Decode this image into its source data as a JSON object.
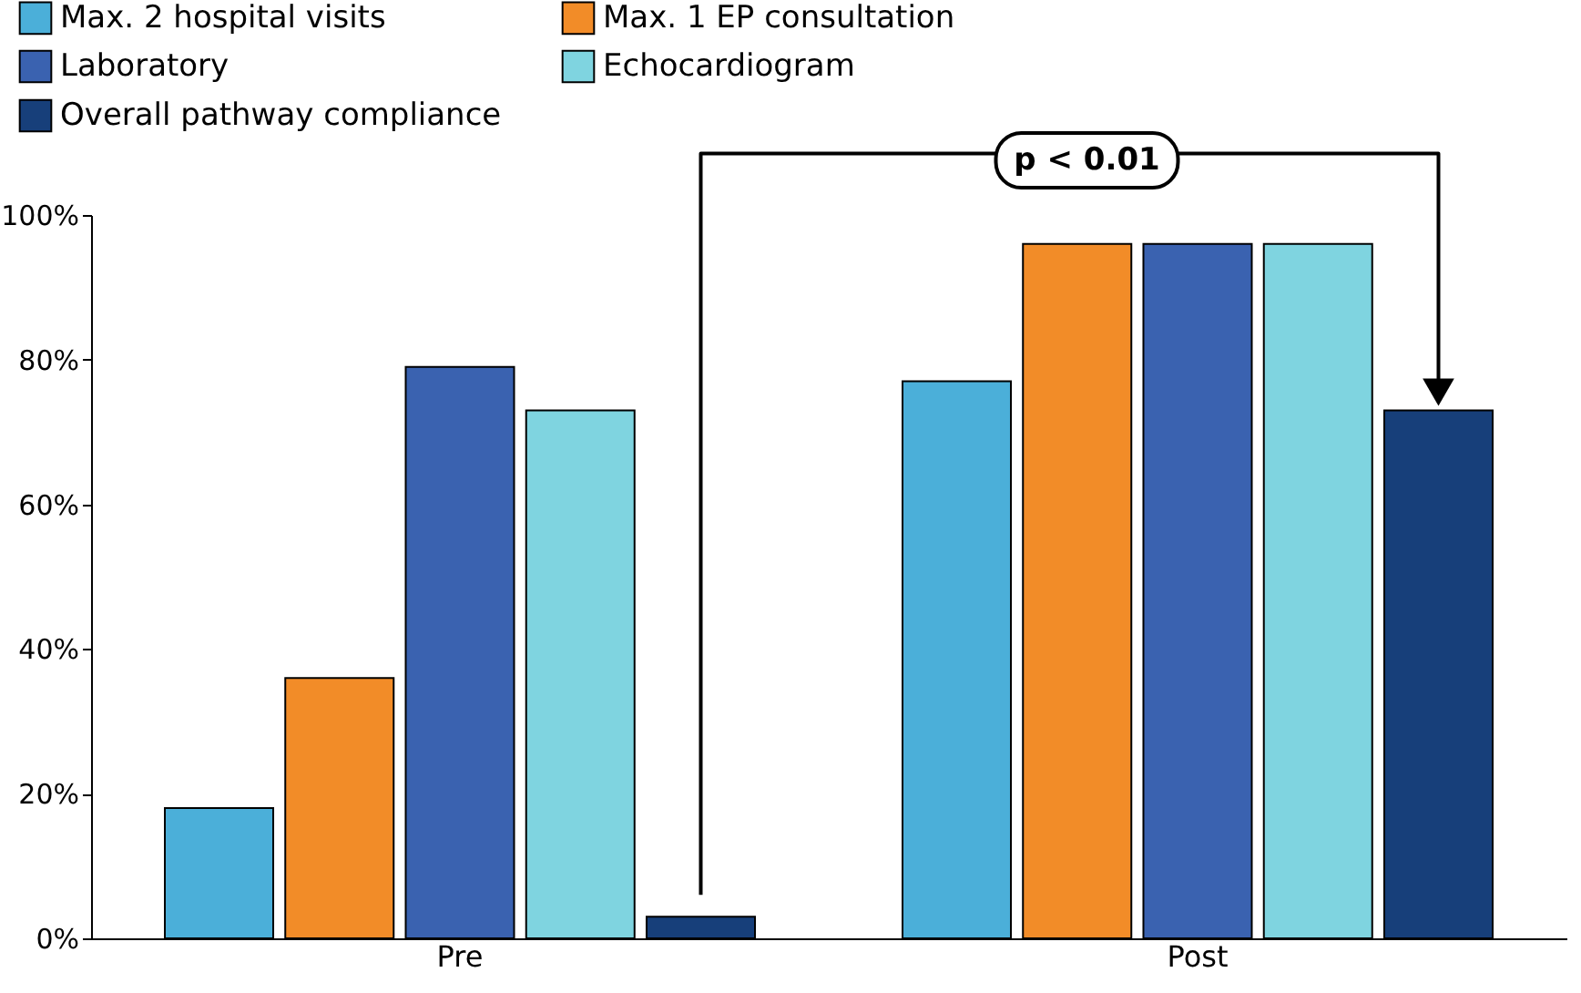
{
  "chart_data": {
    "type": "bar",
    "categories": [
      "Pre",
      "Post"
    ],
    "series": [
      {
        "name": "Max. 2 hospital visits",
        "color": "#4bafd9",
        "values": [
          18,
          77
        ]
      },
      {
        "name": "Max. 1 EP consultation",
        "color": "#f28c28",
        "values": [
          36,
          96
        ]
      },
      {
        "name": "Laboratory",
        "color": "#3a62b0",
        "values": [
          79,
          96
        ]
      },
      {
        "name": "Echocardiogram",
        "color": "#7fd4e0",
        "values": [
          73,
          96
        ]
      },
      {
        "name": "Overall pathway compliance",
        "color": "#173f7a",
        "values": [
          3,
          73
        ]
      }
    ],
    "ylim": [
      0,
      100
    ],
    "yticks": [
      {
        "value": 0,
        "label": "0%"
      },
      {
        "value": 20,
        "label": "20%"
      },
      {
        "value": 40,
        "label": "40%"
      },
      {
        "value": 60,
        "label": "60%"
      },
      {
        "value": 80,
        "label": "80%"
      },
      {
        "value": 100,
        "label": "100%"
      }
    ],
    "annotations": [
      "p < 0.01"
    ],
    "grid": false,
    "legend": "top left"
  }
}
